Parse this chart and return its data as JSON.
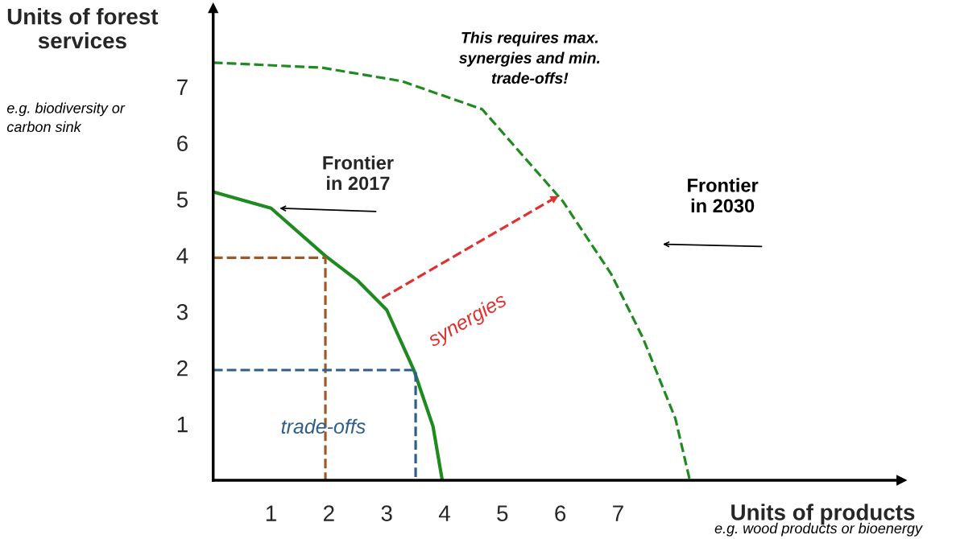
{
  "chart_data": {
    "type": "line",
    "xlabel": "Units of products",
    "ylabel": "Units of forest\nservices",
    "xlim": [
      0,
      11.9
    ],
    "ylim": [
      0,
      8.4
    ],
    "xticks": [
      1,
      2,
      3,
      4,
      5,
      6,
      7
    ],
    "yticks": [
      1,
      2,
      3,
      4,
      5,
      6,
      7
    ],
    "grid": false,
    "legend": false,
    "marker": "none",
    "series": [
      {
        "color": "#1f8a1f",
        "line_style": "solid",
        "x": [
          0,
          1,
          1.94,
          2.5,
          3.0,
          3.47,
          3.8,
          3.96
        ],
        "values": [
          5.13,
          4.84,
          3.99,
          3.55,
          3.03,
          1.96,
          0.96,
          0
        ]
      },
      {
        "color": "#1f8a1f",
        "line_style": "dashed",
        "x": [
          0,
          1.88,
          3.26,
          4.65,
          6.04,
          6.88,
          7.43,
          7.99,
          8.24
        ],
        "values": [
          7.43,
          7.34,
          7.1,
          6.6,
          4.97,
          3.67,
          2.53,
          1.1,
          0
        ]
      },
      {
        "color": "#9b5a2a",
        "line_style": "dashed",
        "x": [
          0,
          1.94,
          1.94
        ],
        "values": [
          3.96,
          3.96,
          0
        ]
      },
      {
        "color": "#2e5f8a",
        "line_style": "dashed",
        "x": [
          0,
          3.5,
          3.5
        ],
        "values": [
          1.96,
          1.96,
          0
        ]
      },
      {
        "color": "#e03030",
        "line_style": "dashed",
        "x": [
          2.92,
          5.97
        ],
        "values": [
          3.24,
          5.06
        ]
      }
    ],
    "annotations": [
      "e.g. biodiversity or\ncarbon sink",
      "e.g. wood products or bioenergy",
      "This requires max.\nsynergies and min.\ntrade-offs!",
      {
        "text": "Frontier\nin 2017",
        "x": 1.11,
        "y": 4.84
      },
      "Frontier\nin 2030",
      "synergies",
      "trade-offs"
    ]
  }
}
